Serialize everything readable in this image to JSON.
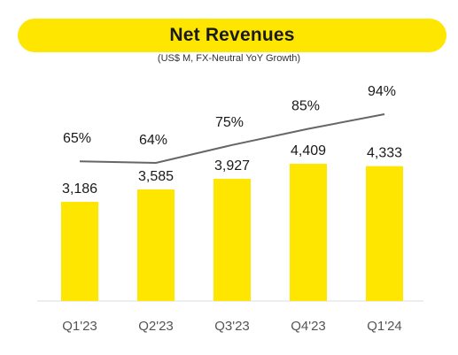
{
  "title": "Net Revenues",
  "subtitle": "(US$ M, FX-Neutral YoY Growth)",
  "colors": {
    "bar": "#ffe600",
    "line": "#666666",
    "text": "#1a1a1a",
    "tick": "#555555",
    "axis": "#dddddd"
  },
  "chart_data": {
    "type": "bar",
    "categories": [
      "Q1'23",
      "Q2'23",
      "Q3'23",
      "Q4'23",
      "Q1'24"
    ],
    "series": [
      {
        "type": "bar",
        "values": [
          3186,
          3585,
          3927,
          4409,
          4333
        ],
        "labels": [
          "3,186",
          "3,585",
          "3,927",
          "4,409",
          "4,333"
        ]
      },
      {
        "type": "line",
        "values": [
          65,
          64,
          75,
          85,
          94
        ],
        "labels": [
          "65%",
          "64%",
          "75%",
          "85%",
          "94%"
        ]
      }
    ],
    "ylim": [
      0,
      4409
    ],
    "grid": false,
    "legend": "none"
  }
}
